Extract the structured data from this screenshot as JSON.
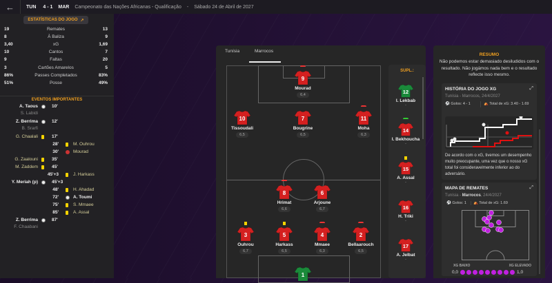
{
  "header": {
    "home": "TUN",
    "score": "4 - 1",
    "away": "MAR",
    "competition": "Campeonato das Nações Africanas - Qualificação",
    "separator": "-",
    "date": "Sábado 24 de Abril de 2027"
  },
  "stats": {
    "button": "ESTATÍSTICAS DO JOGO",
    "rows": [
      {
        "home": "19",
        "label": "Remates",
        "away": "13"
      },
      {
        "home": "8",
        "label": "À Baliza",
        "away": "9"
      },
      {
        "home": "3,40",
        "label": "xG",
        "away": "1,69"
      },
      {
        "home": "10",
        "label": "Cantos",
        "away": "7"
      },
      {
        "home": "9",
        "label": "Faltas",
        "away": "20"
      },
      {
        "home": "3",
        "label": "Cartões Amarelos",
        "away": "5"
      },
      {
        "home": "86%",
        "label": "Passes Completados",
        "away": "83%"
      },
      {
        "home": "51%",
        "label": "Posse",
        "away": "49%"
      }
    ]
  },
  "events": {
    "title": "EVENTOS IMPORTANTES",
    "items": [
      {
        "side": "home",
        "player": "A. Taous",
        "assist": "S. Labidi",
        "type": "goal",
        "time": "10'"
      },
      {
        "side": "home",
        "player": "Z. Berrima",
        "assist": "B. Srarfi",
        "type": "goal",
        "time": "12'"
      },
      {
        "side": "home",
        "player": "G. Chaalali",
        "type": "yellow",
        "time": "17'"
      },
      {
        "side": "away",
        "player": "M. Ouhrou",
        "type": "yellow",
        "time": "28'"
      },
      {
        "side": "away",
        "player": "Mourad",
        "type": "injury",
        "time": "30'"
      },
      {
        "side": "home",
        "player": "G. Zaalouni",
        "type": "yellow",
        "time": "35'"
      },
      {
        "side": "home",
        "player": "M. Zaddem",
        "type": "yellow",
        "time": "45'"
      },
      {
        "side": "away",
        "player": "J. Harkass",
        "type": "yellow",
        "time": "45'+3"
      },
      {
        "side": "home",
        "player": "Y. Meriah (p)",
        "type": "goal",
        "time": "45'+3"
      },
      {
        "side": "away",
        "player": "H. Ahadad",
        "type": "yellow",
        "time": "48'"
      },
      {
        "side": "away",
        "player": "A. Toumi",
        "type": "goal",
        "time": "72'"
      },
      {
        "side": "away",
        "player": "S. Mmaee",
        "type": "yellow",
        "time": "75'"
      },
      {
        "side": "away",
        "player": "A. Assal",
        "type": "yellow",
        "time": "85'"
      },
      {
        "side": "home",
        "player": "Z. Berrima",
        "assist": "F. Chaabani",
        "type": "goal",
        "time": "87'"
      }
    ]
  },
  "lineup": {
    "tabs": [
      "Tunísia",
      "Marrocos"
    ],
    "active_tab": "Marrocos",
    "players": [
      {
        "num": "9",
        "name": "Mourad",
        "rating": "6,4",
        "mark": "injury"
      },
      {
        "num": "10",
        "name": "Tissoudali",
        "rating": "6,5"
      },
      {
        "num": "7",
        "name": "Bougrine",
        "rating": "6,5"
      },
      {
        "num": "11",
        "name": "Moha",
        "rating": "6,3",
        "mark": "sub-off"
      },
      {
        "num": "8",
        "name": "Hrimat",
        "rating": "6,6",
        "mark": "sub-off"
      },
      {
        "num": "6",
        "name": "Arjoune",
        "rating": "6,7"
      },
      {
        "num": "3",
        "name": "Ouhrou",
        "rating": "6,7",
        "mark": "yellow"
      },
      {
        "num": "5",
        "name": "Harkass",
        "rating": "6,5",
        "mark": "yellow"
      },
      {
        "num": "4",
        "name": "Mmaee",
        "rating": "6,3",
        "mark": "sub-off"
      },
      {
        "num": "2",
        "name": "Bellaarouch",
        "rating": "6,5",
        "mark": "sub-off"
      },
      {
        "num": "1",
        "name": "",
        "rating": "",
        "gk": true
      }
    ],
    "subs_title": "SUPL.:",
    "subs": [
      {
        "num": "12",
        "name": "I. Lekbab",
        "rating": "-",
        "gk": true
      },
      {
        "num": "14",
        "name": "I. Bekhoucha",
        "rating": "-",
        "mark": "sub-on"
      },
      {
        "num": "15",
        "name": "A. Assal",
        "rating": "-",
        "mark": "yellow"
      },
      {
        "num": "16",
        "name": "H. Triki",
        "rating": "-"
      },
      {
        "num": "17",
        "name": "A. Jelbat",
        "rating": "-"
      }
    ]
  },
  "summary": {
    "title": "RESUMO",
    "text": "Não podemos estar demasiado desiludidos com o resultado. Não jogámos nada bem e o resultado reflecte isso mesmo.",
    "xg_card": {
      "title": "HISTÓRIA DO JOGO XG",
      "subtitle": "Tunísia - Marrocos, 24/4/2027",
      "goals": "Golos: 4 - 1",
      "xg_total": "Total de xG: 3.40 - 1.69",
      "text": "De acordo com o xG, tivemos um desempenho muito preocupante, uma vez que o nosso xG total foi consideravelmente inferior ao do adversário."
    },
    "shot_card": {
      "title": "MAPA DE REMATES",
      "subtitle_pre": "Tunísia - ",
      "subtitle_team": "Marrocos",
      "subtitle_post": ", 24/4/2027",
      "goals": "Golos: 1",
      "xg_total": "Total de xG: 1.69",
      "low": "XG BAIXO",
      "high": "XG ELEVADO",
      "min": "0,0",
      "max": "1,0"
    }
  },
  "colors": {
    "accent": "#f0a020",
    "home_line": "#ffffff",
    "away_line": "#e01010",
    "shirt": "#d42020",
    "gk": "#1a8a3a",
    "shot": "#c020e0"
  }
}
